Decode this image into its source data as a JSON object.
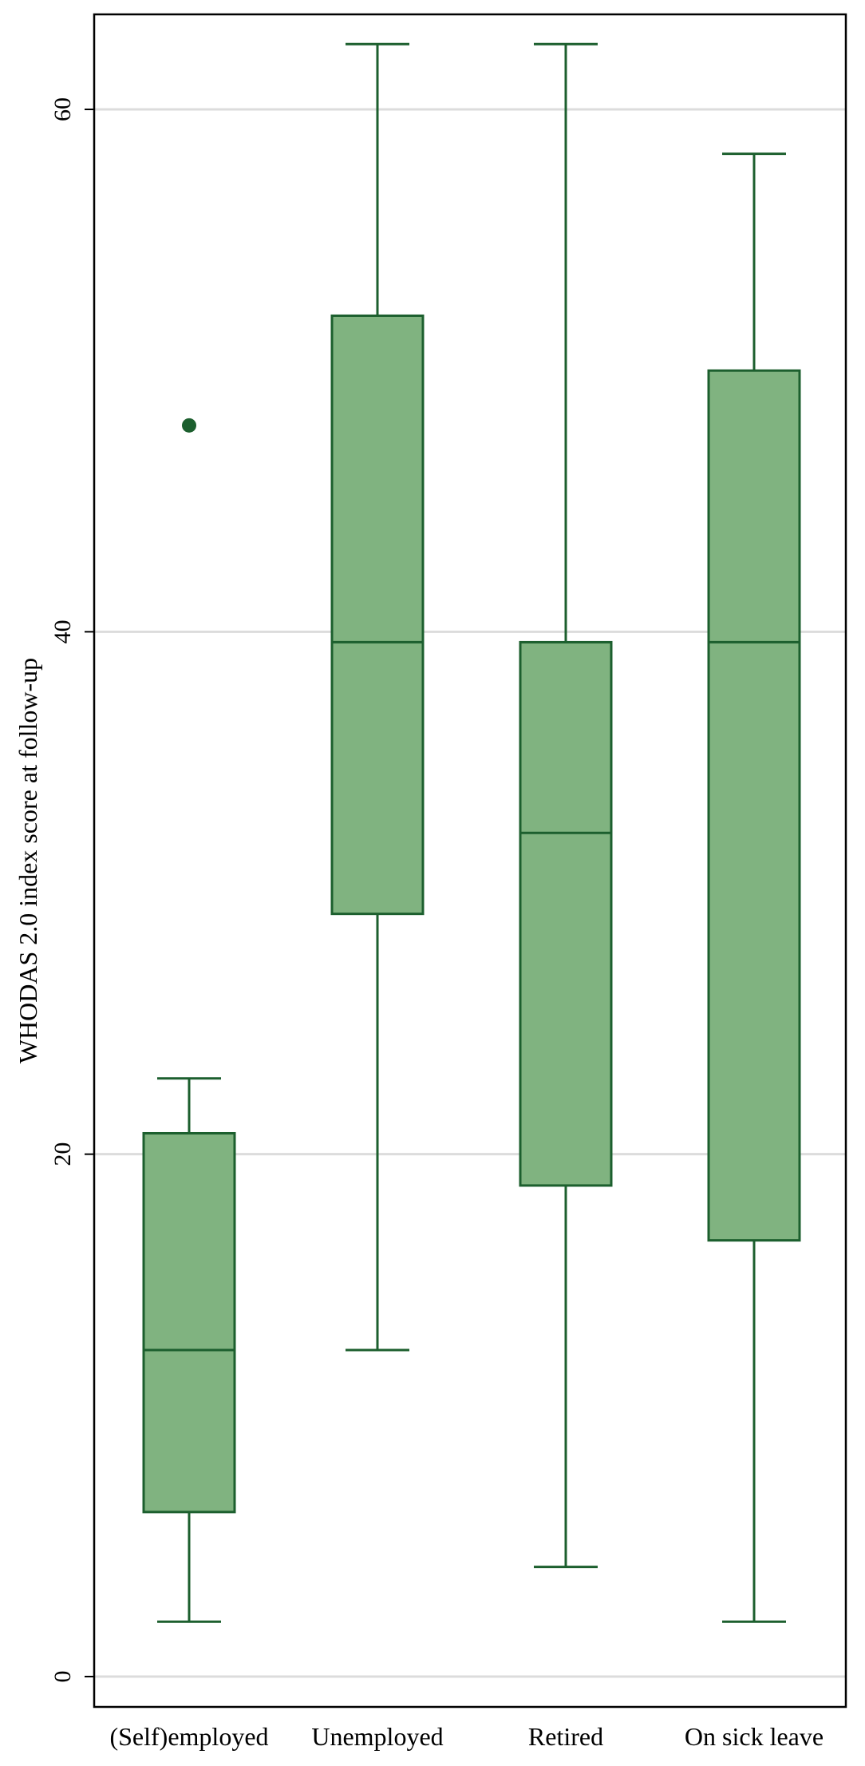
{
  "chart_data": {
    "type": "boxplot",
    "ylabel": "WHODAS 2.0 index score at follow-up",
    "xlabel": "",
    "title": "",
    "ylim": [
      0,
      64.5
    ],
    "yticks": [
      0,
      20,
      40,
      60
    ],
    "grid": "horizontal",
    "categories": [
      "(Self)employed",
      "Unemployed",
      "Retired",
      "On sick leave"
    ],
    "boxes": [
      {
        "category": "(Self)employed",
        "min": 2.1,
        "q1": 6.3,
        "median": 12.5,
        "q3": 20.8,
        "max": 22.9,
        "outliers": [
          47.9
        ]
      },
      {
        "category": "Unemployed",
        "min": 12.5,
        "q1": 29.2,
        "median": 39.6,
        "q3": 52.1,
        "max": 62.5,
        "outliers": []
      },
      {
        "category": "Retired",
        "min": 4.2,
        "q1": 18.8,
        "median": 32.3,
        "q3": 39.6,
        "max": 62.5,
        "outliers": []
      },
      {
        "category": "On sick leave",
        "min": 2.1,
        "q1": 16.7,
        "median": 39.6,
        "q3": 50.0,
        "max": 58.3,
        "outliers": []
      }
    ],
    "colors": {
      "box_fill": "#80b380",
      "box_stroke": "#1c5f2e",
      "outlier": "#1c5f2e",
      "grid": "#dcdcdc",
      "frame": "#000000"
    }
  }
}
